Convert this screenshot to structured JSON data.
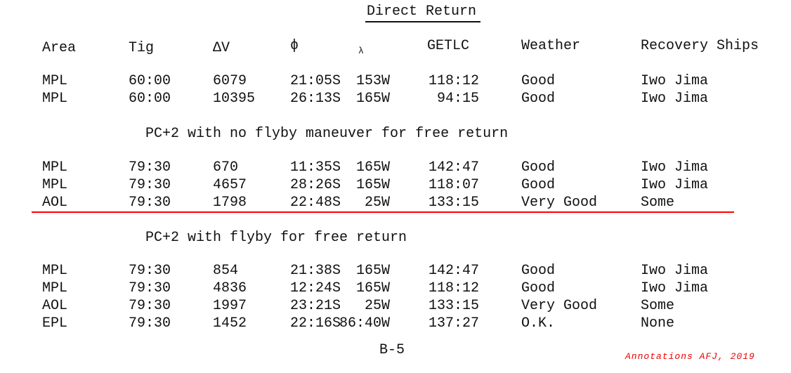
{
  "title": "Direct Return",
  "headers": [
    "Area",
    "Tig",
    "ΔV",
    "ϕ",
    "λ",
    "GETLC",
    "Weather",
    "Recovery Ships"
  ],
  "groups": [
    {
      "heading": "",
      "rows": [
        [
          "MPL",
          "60:00",
          "6079",
          "21:05S",
          "153W",
          "118:12",
          "Good",
          "Iwo Jima"
        ],
        [
          "MPL",
          "60:00",
          "10395",
          "26:13S",
          "165W",
          "94:15",
          "Good",
          "Iwo Jima"
        ]
      ]
    },
    {
      "heading": "PC+2 with no flyby maneuver for free return",
      "rows": [
        [
          "MPL",
          "79:30",
          "670",
          "11:35S",
          "165W",
          "142:47",
          "Good",
          "Iwo Jima"
        ],
        [
          "MPL",
          "79:30",
          "4657",
          "28:26S",
          "165W",
          "118:07",
          "Good",
          "Iwo Jima"
        ],
        [
          "AOL",
          "79:30",
          "1798",
          "22:48S",
          "25W",
          "133:15",
          "Very Good",
          "Some"
        ]
      ]
    },
    {
      "heading": "PC+2 with flyby for free return",
      "rows": [
        [
          "MPL",
          "79:30",
          "854",
          "21:38S",
          "165W",
          "142:47",
          "Good",
          "Iwo Jima"
        ],
        [
          "MPL",
          "79:30",
          "4836",
          "12:24S",
          "165W",
          "118:12",
          "Good",
          "Iwo Jima"
        ],
        [
          "AOL",
          "79:30",
          "1997",
          "23:21S",
          "25W",
          "133:15",
          "Very Good",
          "Some"
        ],
        [
          "EPL",
          "79:30",
          "1452",
          "22:16S",
          "86:40W",
          "137:27",
          "O.K.",
          "None"
        ]
      ]
    }
  ],
  "page_number": "B-5",
  "annotation": "Annotations AFJ, 2019",
  "colors": {
    "highlight_line": "#ff0000",
    "annotation": "#e00000"
  }
}
